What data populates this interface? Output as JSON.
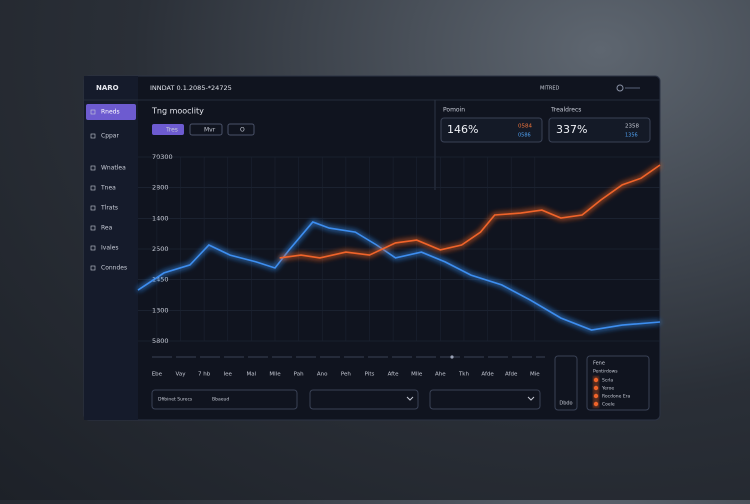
{
  "app": {
    "logo": "NARO",
    "header": "INNDAT 0.1.2085-*24725",
    "top_right": "MITRED"
  },
  "sidebar": [
    "Rneds",
    "Cppar",
    "Wnatlea",
    "Tnea",
    "Tlrats",
    "Rea",
    "Ivales",
    "Conndes"
  ],
  "toolbar": [
    "Tres",
    "Mvr",
    "O"
  ],
  "cards": [
    {
      "label": "Pomoin",
      "value": "146%",
      "small": [
        "0584",
        "0586"
      ]
    },
    {
      "label": "Trealdrecs",
      "value": "337%",
      "small": [
        "2358",
        "1356"
      ]
    }
  ],
  "chart_data": {
    "type": "line",
    "title": "Tng mooclity",
    "categories": [
      "Ebe",
      "Vay",
      "7 hb",
      "Iee",
      "Mal",
      "Mlle",
      "Pah",
      "Ano",
      "Peh",
      "Pits",
      "Afte",
      "Mlle",
      "Ahe",
      "Tkh",
      "Afde",
      "Afde",
      "Mie"
    ],
    "xlim": [
      -0.8,
      21.3
    ],
    "ylim": [
      0,
      6
    ],
    "yticks": [
      {
        "value": 0,
        "label": "5800"
      },
      {
        "value": 1,
        "label": "1300"
      },
      {
        "value": 2,
        "label": "1450"
      },
      {
        "value": 3,
        "label": "2500"
      },
      {
        "value": 4,
        "label": "1400"
      },
      {
        "value": 5,
        "label": "2800"
      },
      {
        "value": 6,
        "label": "70300"
      }
    ],
    "grid": true,
    "series": [
      {
        "color": "#3d8ef0",
        "x": [
          -0.8,
          0.3,
          1.4,
          2.2,
          3.1,
          4.2,
          5.0,
          5.6,
          6.6,
          7.3,
          8.4,
          9.3,
          10.1,
          11.2,
          12.2,
          13.3,
          14.6,
          15.8,
          17.1,
          18.4,
          19.7,
          21.3
        ],
        "values": [
          1.66,
          2.22,
          2.48,
          3.13,
          2.8,
          2.58,
          2.38,
          2.97,
          3.88,
          3.68,
          3.55,
          3.13,
          2.71,
          2.9,
          2.58,
          2.15,
          1.83,
          1.34,
          0.75,
          0.36,
          0.52,
          0.62
        ]
      },
      {
        "color": "#f0642a",
        "x": [
          5.2,
          6.1,
          6.9,
          8.0,
          9.0,
          10.1,
          11.0,
          12.0,
          12.9,
          13.7,
          14.3,
          15.4,
          16.3,
          17.1,
          18.0,
          18.8,
          19.7,
          20.5,
          21.3
        ],
        "values": [
          2.71,
          2.8,
          2.71,
          2.9,
          2.8,
          3.2,
          3.29,
          2.97,
          3.13,
          3.55,
          4.11,
          4.17,
          4.27,
          4.01,
          4.11,
          4.6,
          5.09,
          5.31,
          5.74
        ]
      }
    ]
  },
  "controls": {
    "input": [
      "Dfibinet Surecs",
      "Bbaeud"
    ],
    "side_button": "Dbdo",
    "legend_panel": {
      "title": "Fene",
      "subtitle": "Pentirdows",
      "items": [
        "Scrla",
        "Yeroe",
        "Rocdone Era",
        "Coele"
      ]
    }
  }
}
